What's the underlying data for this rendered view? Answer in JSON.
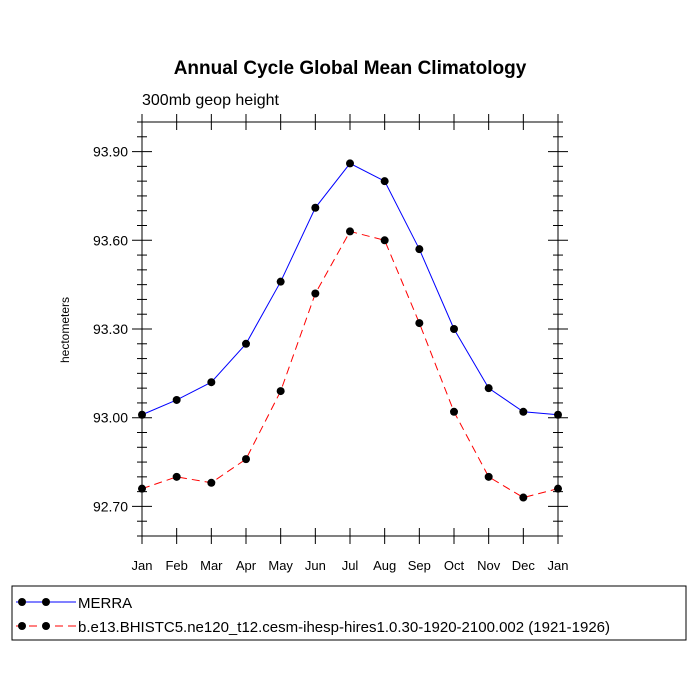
{
  "chart_data": {
    "type": "line",
    "title": "Annual Cycle Global Mean Climatology",
    "subtitle": "300mb geop height",
    "xlabel": "",
    "ylabel": "hectometers",
    "categories": [
      "Jan",
      "Feb",
      "Mar",
      "Apr",
      "May",
      "Jun",
      "Jul",
      "Aug",
      "Sep",
      "Oct",
      "Nov",
      "Dec",
      "Jan"
    ],
    "ylim": [
      92.6,
      94.0
    ],
    "yticks": [
      "93.90",
      "93.60",
      "93.30",
      "93.00",
      "92.70"
    ],
    "series": [
      {
        "name": "MERRA",
        "color": "#0000ff",
        "line_style": "solid",
        "marker": "filled-circle",
        "values": [
          93.01,
          93.06,
          93.12,
          93.25,
          93.46,
          93.71,
          93.86,
          93.8,
          93.57,
          93.3,
          93.1,
          93.02,
          93.01
        ]
      },
      {
        "name": "b.e13.BHISTC5.ne120_t12.cesm-ihesp-hires1.0.30-1920-2100.002 (1921-1926)",
        "color": "#ff0000",
        "line_style": "dashed",
        "marker": "filled-circle",
        "values": [
          92.76,
          92.8,
          92.78,
          92.86,
          93.09,
          93.42,
          93.63,
          93.6,
          93.32,
          93.02,
          92.8,
          92.73,
          92.76
        ]
      }
    ],
    "legend_position": "bottom"
  }
}
